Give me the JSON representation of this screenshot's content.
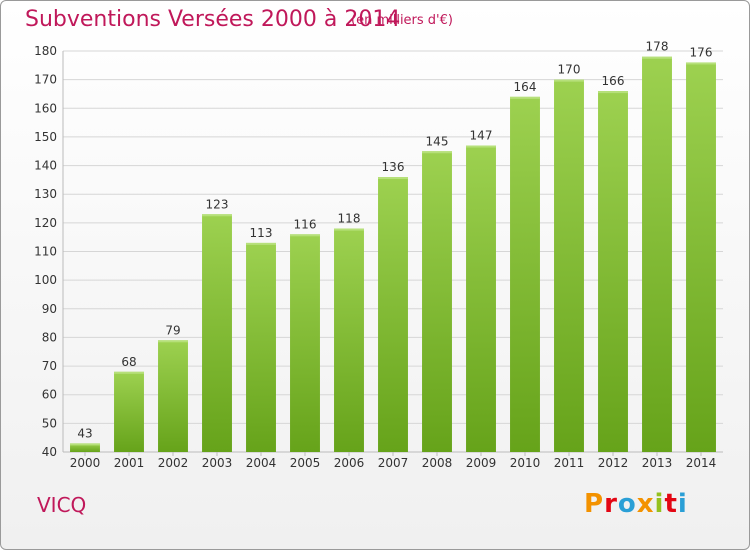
{
  "header": {
    "title": "Subventions Versées 2000 à 2014",
    "subtitle": "(en milliers d'€)"
  },
  "footer": {
    "place": "VICQ",
    "logo": {
      "letters": [
        "P",
        "r",
        "o",
        "x",
        "i",
        "t",
        "i"
      ],
      "colors": [
        "#f39200",
        "#e30613",
        "#2a9fd6",
        "#f39200",
        "#95c11f",
        "#e30613",
        "#2a9fd6"
      ]
    }
  },
  "chart_data": {
    "type": "bar",
    "categories": [
      "2000",
      "2001",
      "2002",
      "2003",
      "2004",
      "2005",
      "2006",
      "2007",
      "2008",
      "2009",
      "2010",
      "2011",
      "2012",
      "2013",
      "2014"
    ],
    "values": [
      43,
      68,
      79,
      123,
      113,
      116,
      118,
      136,
      145,
      147,
      164,
      170,
      166,
      178,
      176
    ],
    "title": "Subventions Versées 2000 à 2014",
    "ylim": [
      40,
      180
    ],
    "yticks": [
      40,
      50,
      60,
      70,
      80,
      90,
      100,
      110,
      120,
      130,
      140,
      150,
      160,
      170,
      180
    ],
    "grid": true,
    "bar_color": "#8cc63f",
    "bar_color_dark": "#6aa81e"
  }
}
